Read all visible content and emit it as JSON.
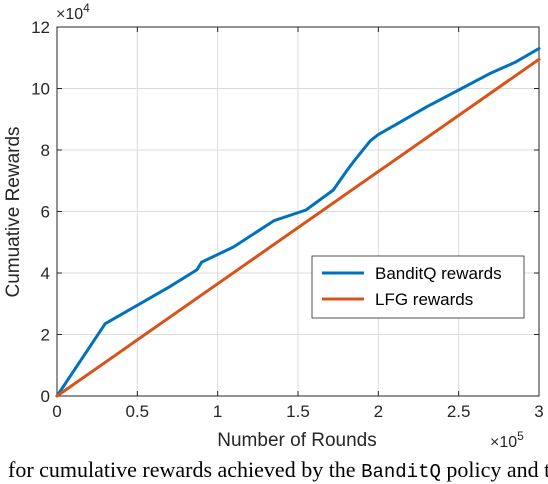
{
  "chart_data": {
    "type": "line",
    "xlabel": "Number of Rounds",
    "ylabel": "Cumuative Rewards",
    "x_exponent_label": "×10",
    "x_exponent": "5",
    "y_exponent_label": "×10",
    "y_exponent": "4",
    "xlim": [
      0,
      3
    ],
    "ylim": [
      0,
      12
    ],
    "x_ticks": [
      0,
      0.5,
      1,
      1.5,
      2,
      2.5,
      3
    ],
    "x_tick_labels": [
      "0",
      "0.5",
      "1",
      "1.5",
      "2",
      "2.5",
      "3"
    ],
    "y_ticks": [
      0,
      2,
      4,
      6,
      8,
      10,
      12
    ],
    "y_tick_labels": [
      "0",
      "2",
      "4",
      "6",
      "8",
      "10",
      "12"
    ],
    "grid": true,
    "legend_position": "center-right",
    "series": [
      {
        "name": "BanditQ rewards",
        "color": "#0072BD",
        "x": [
          0,
          0.3,
          0.5,
          0.7,
          0.87,
          0.9,
          1.1,
          1.35,
          1.55,
          1.72,
          1.8,
          1.85,
          1.95,
          2.0,
          2.1,
          2.3,
          2.5,
          2.7,
          2.85,
          3.0
        ],
        "y": [
          0,
          2.35,
          2.95,
          3.55,
          4.1,
          4.35,
          4.85,
          5.7,
          6.05,
          6.7,
          7.3,
          7.65,
          8.3,
          8.5,
          8.8,
          9.4,
          9.95,
          10.5,
          10.85,
          11.3
        ]
      },
      {
        "name": "LFG rewards",
        "color": "#D95319",
        "x": [
          0,
          3.0
        ],
        "y": [
          0,
          10.95
        ]
      }
    ]
  },
  "caption": {
    "part1": "for cumulative rewards achieved by the",
    "mono": "BanditQ",
    "part2": "policy and the O"
  }
}
